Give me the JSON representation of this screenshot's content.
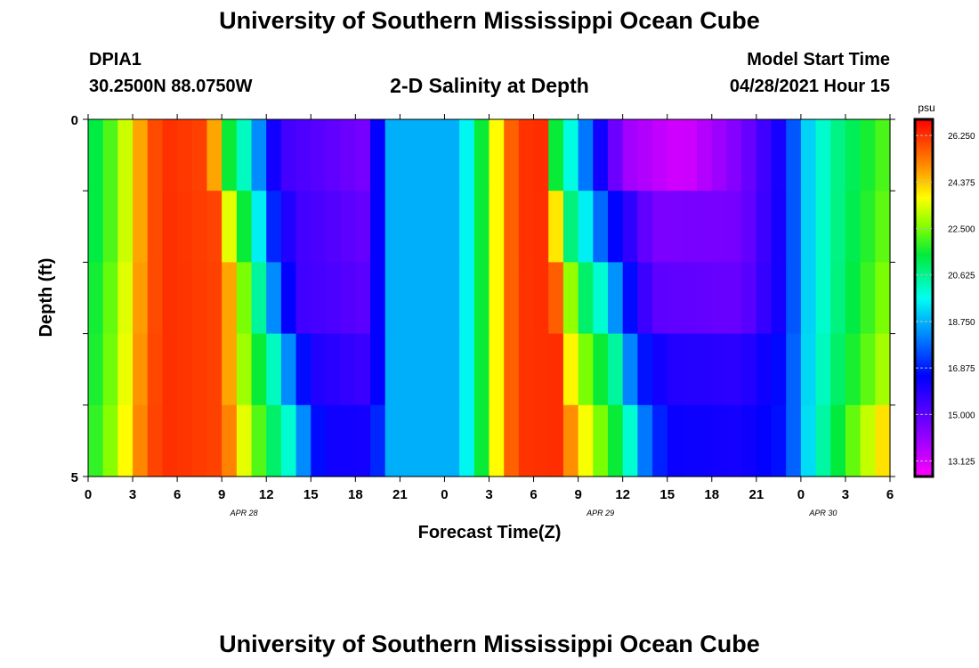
{
  "header": {
    "title": "University of Southern Mississippi Ocean Cube",
    "station": "DPIA1",
    "coords": "30.2500N  88.0750W",
    "chart_title": "2-D Salinity at Depth",
    "model_label": "Model Start Time",
    "model_time": "04/28/2021 Hour 15"
  },
  "footer": {
    "title": "University of Southern Mississippi Ocean Cube"
  },
  "chart_data": {
    "type": "heatmap",
    "title": "2-D Salinity at Depth",
    "xlabel": "Forecast Time(Z)",
    "ylabel": "Depth (ft)",
    "x_tick_labels": [
      "0",
      "3",
      "6",
      "9",
      "12",
      "15",
      "18",
      "21",
      "0",
      "3",
      "6",
      "9",
      "12",
      "15",
      "18",
      "21",
      "0",
      "3",
      "6"
    ],
    "date_labels": [
      {
        "label": "APR  28",
        "tick_index": 3.5
      },
      {
        "label": "APR  29",
        "tick_index": 11.5
      },
      {
        "label": "APR  30",
        "tick_index": 16.5
      }
    ],
    "y_tick_labels": [
      "0",
      "5"
    ],
    "ylim": [
      0,
      5
    ],
    "colorbar": {
      "unit": "psu",
      "tick_labels": [
        "26.250",
        "24.375",
        "22.500",
        "20.625",
        "18.750",
        "16.875",
        "15.000",
        "13.125"
      ],
      "min": 12.5,
      "max": 26.9
    },
    "x_hours": 54,
    "depth_rows": 5,
    "salinity_keyframes": [
      [
        [
          0,
          21.0
        ],
        [
          2,
          22.5
        ],
        [
          3,
          24.0
        ],
        [
          4,
          25.5
        ],
        [
          5,
          26.3
        ],
        [
          8,
          26.0
        ],
        [
          9,
          23.5
        ],
        [
          9.5,
          21.5
        ],
        [
          11,
          19.5
        ],
        [
          12,
          17.0
        ],
        [
          13,
          15.5
        ],
        [
          19,
          14.5
        ],
        [
          19.5,
          16.5
        ],
        [
          20,
          18.7
        ],
        [
          25,
          18.7
        ],
        [
          26,
          20.5
        ],
        [
          27,
          22.5
        ],
        [
          28,
          25.0
        ],
        [
          29,
          26.2
        ],
        [
          30.5,
          26.3
        ],
        [
          31,
          24.0
        ],
        [
          31.5,
          21.5
        ],
        [
          33,
          19.0
        ],
        [
          34,
          17.0
        ],
        [
          36,
          14.0
        ],
        [
          40,
          13.1
        ],
        [
          44,
          14.5
        ],
        [
          47,
          16.5
        ],
        [
          48,
          18.7
        ],
        [
          50,
          20.5
        ],
        [
          54,
          22.3
        ]
      ],
      [
        [
          0,
          21.0
        ],
        [
          2,
          22.5
        ],
        [
          3,
          24.0
        ],
        [
          4,
          25.5
        ],
        [
          5,
          26.3
        ],
        [
          8.5,
          26.0
        ],
        [
          9.5,
          23.5
        ],
        [
          10.5,
          21.5
        ],
        [
          11.5,
          19.5
        ],
        [
          12.5,
          17.0
        ],
        [
          14,
          15.5
        ],
        [
          19,
          14.8
        ],
        [
          19.5,
          16.5
        ],
        [
          20,
          18.7
        ],
        [
          25,
          18.7
        ],
        [
          26,
          20.5
        ],
        [
          27,
          22.5
        ],
        [
          28,
          25.0
        ],
        [
          29,
          26.2
        ],
        [
          31,
          26.3
        ],
        [
          31.5,
          24.0
        ],
        [
          32,
          21.5
        ],
        [
          33.5,
          19.5
        ],
        [
          35,
          17.0
        ],
        [
          38,
          14.5
        ],
        [
          44,
          14.6
        ],
        [
          47,
          16.5
        ],
        [
          48,
          18.7
        ],
        [
          50,
          20.5
        ],
        [
          54,
          22.5
        ]
      ],
      [
        [
          0,
          21.2
        ],
        [
          2,
          22.7
        ],
        [
          3,
          24.2
        ],
        [
          4,
          25.5
        ],
        [
          5,
          26.3
        ],
        [
          9,
          26.0
        ],
        [
          10,
          23.5
        ],
        [
          11,
          21.5
        ],
        [
          12,
          19.5
        ],
        [
          13,
          17.0
        ],
        [
          14.5,
          15.5
        ],
        [
          19,
          15.0
        ],
        [
          19.5,
          16.5
        ],
        [
          20,
          18.7
        ],
        [
          25,
          18.7
        ],
        [
          26,
          20.5
        ],
        [
          27,
          22.5
        ],
        [
          28,
          25.0
        ],
        [
          29,
          26.2
        ],
        [
          31.3,
          26.3
        ],
        [
          32,
          24.0
        ],
        [
          33,
          21.5
        ],
        [
          35,
          19.5
        ],
        [
          36,
          17.2
        ],
        [
          38,
          15.0
        ],
        [
          44,
          14.8
        ],
        [
          47,
          16.5
        ],
        [
          48,
          18.7
        ],
        [
          50,
          20.5
        ],
        [
          54,
          22.8
        ]
      ],
      [
        [
          0,
          21.3
        ],
        [
          2,
          22.8
        ],
        [
          3,
          24.3
        ],
        [
          4,
          25.6
        ],
        [
          5,
          26.3
        ],
        [
          9,
          26.0
        ],
        [
          10,
          23.5
        ],
        [
          11.5,
          21.5
        ],
        [
          13,
          19.5
        ],
        [
          14,
          17.0
        ],
        [
          15.5,
          16.0
        ],
        [
          19,
          15.5
        ],
        [
          19.5,
          16.5
        ],
        [
          20,
          18.7
        ],
        [
          25,
          18.7
        ],
        [
          26,
          20.5
        ],
        [
          27,
          22.5
        ],
        [
          28,
          25.0
        ],
        [
          29,
          26.2
        ],
        [
          31.5,
          26.3
        ],
        [
          32,
          24.5
        ],
        [
          33.5,
          22.5
        ],
        [
          35.5,
          20.5
        ],
        [
          37,
          17.0
        ],
        [
          39,
          16.0
        ],
        [
          44,
          15.8
        ],
        [
          47,
          16.8
        ],
        [
          48,
          18.7
        ],
        [
          50,
          20.7
        ],
        [
          54,
          23.2
        ]
      ],
      [
        [
          0,
          21.5
        ],
        [
          2,
          23.0
        ],
        [
          3,
          24.5
        ],
        [
          4,
          25.7
        ],
        [
          5,
          26.3
        ],
        [
          9,
          26.0
        ],
        [
          10.5,
          23.5
        ],
        [
          12,
          21.5
        ],
        [
          14,
          19.5
        ],
        [
          15,
          17.0
        ],
        [
          16,
          16.3
        ],
        [
          19,
          16.2
        ],
        [
          19.5,
          17.0
        ],
        [
          20,
          18.7
        ],
        [
          25,
          18.7
        ],
        [
          26,
          20.5
        ],
        [
          27,
          22.5
        ],
        [
          28,
          25.0
        ],
        [
          29,
          26.2
        ],
        [
          31.5,
          26.3
        ],
        [
          32.5,
          25.0
        ],
        [
          34,
          23.0
        ],
        [
          36,
          21.0
        ],
        [
          37.5,
          18.0
        ],
        [
          39,
          16.4
        ],
        [
          44,
          16.2
        ],
        [
          47,
          16.8
        ],
        [
          48,
          18.7
        ],
        [
          50,
          21.0
        ],
        [
          54,
          24.5
        ]
      ]
    ]
  }
}
